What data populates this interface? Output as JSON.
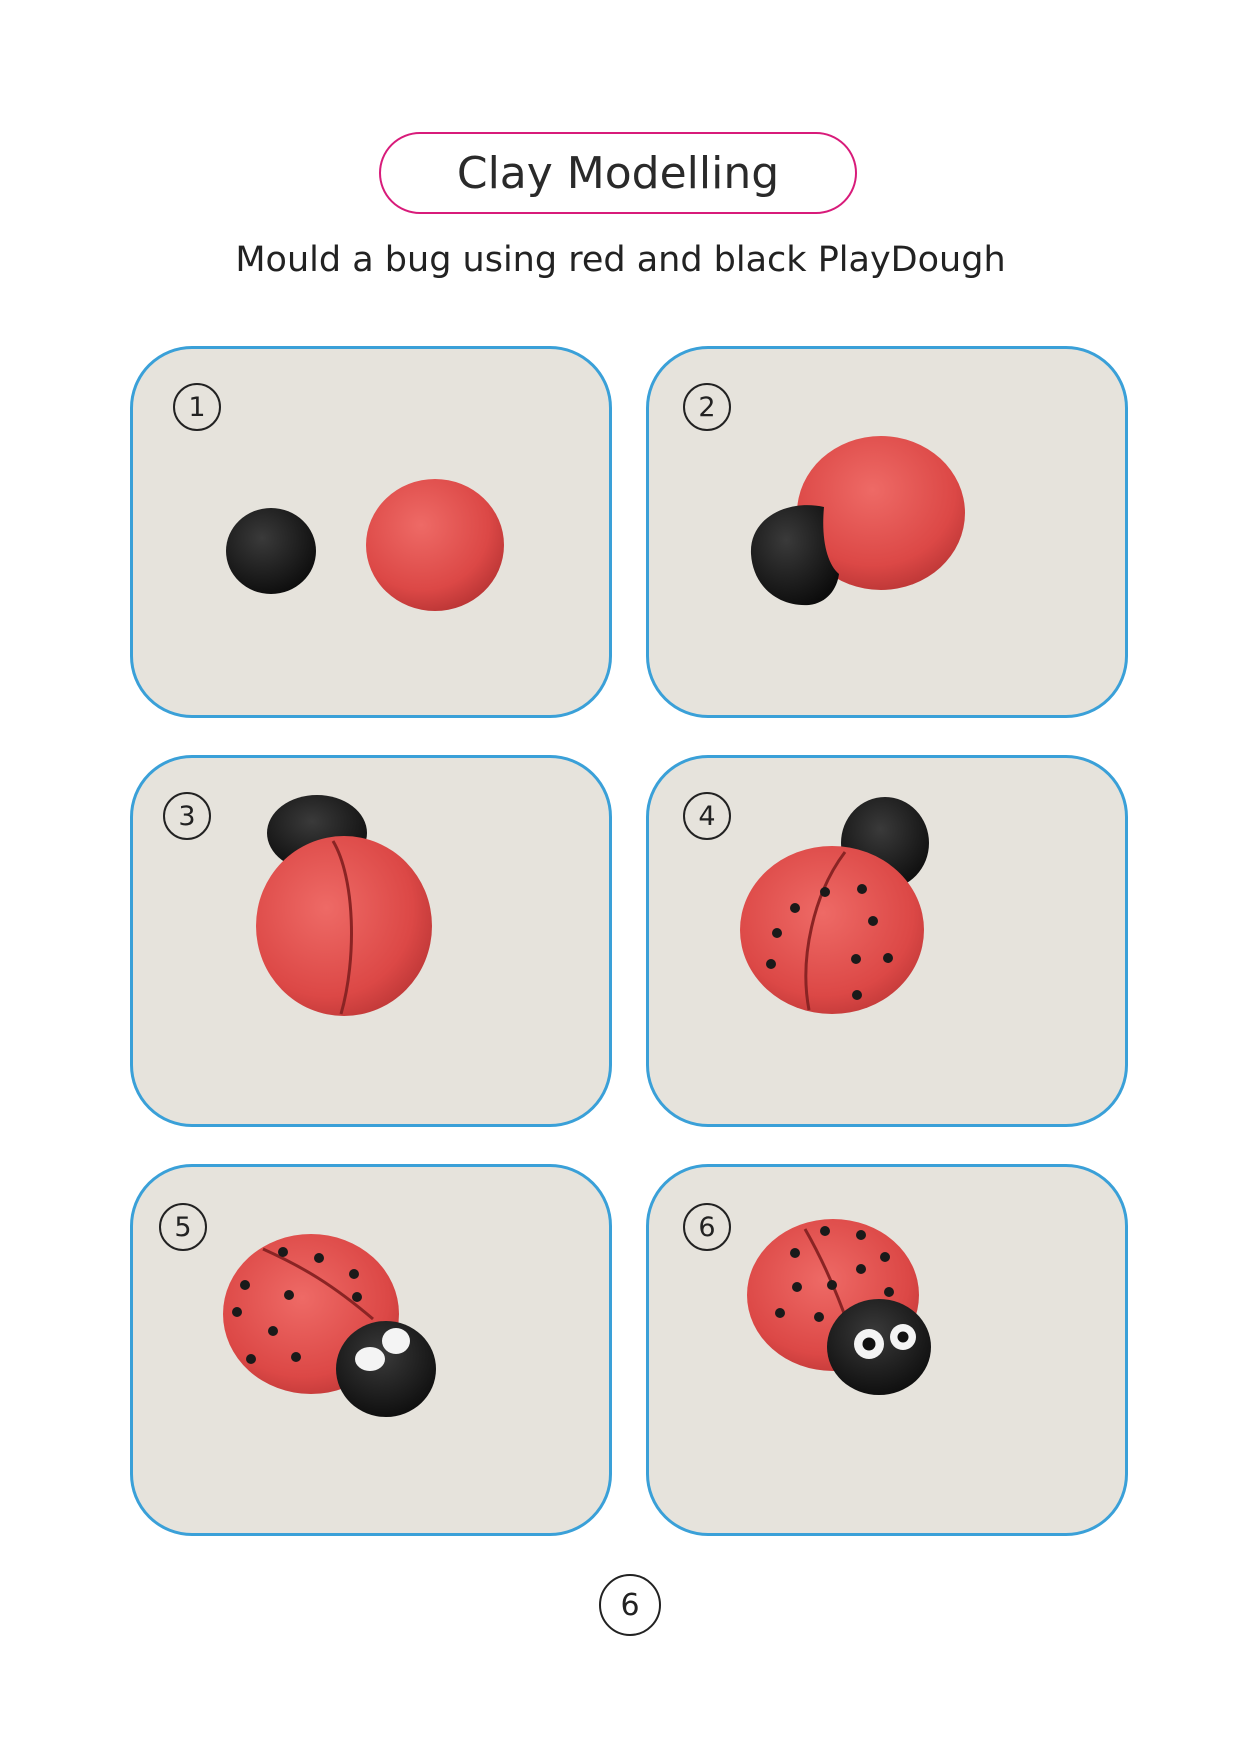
{
  "title": "Clay Modelling",
  "subtitle": "Mould a bug using red and black PlayDough",
  "colors": {
    "title_border": "#d81b7a",
    "card_border": "#3aa0d8",
    "card_background": "#e6e3dc",
    "clay_red": "#e2504f",
    "clay_black": "#141414"
  },
  "steps": [
    {
      "number": "1"
    },
    {
      "number": "2"
    },
    {
      "number": "3"
    },
    {
      "number": "4"
    },
    {
      "number": "5"
    },
    {
      "number": "6"
    }
  ],
  "page_number": "6"
}
